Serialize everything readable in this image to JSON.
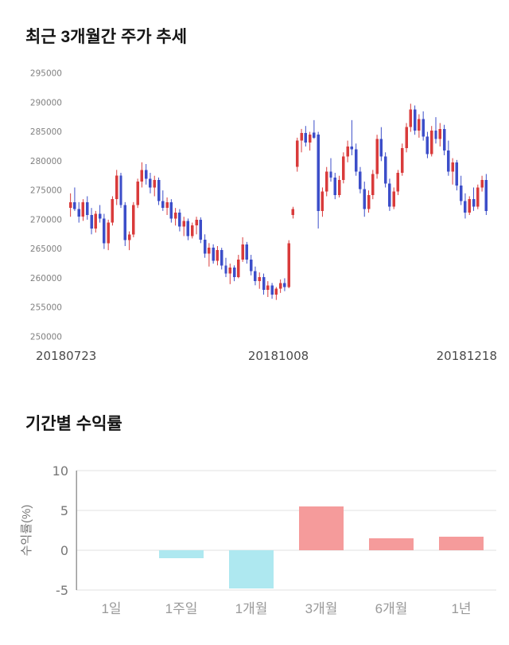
{
  "chart_data": [
    {
      "type": "candlestick",
      "title": "최근 3개월간 주가 추세",
      "ylim": [
        250000,
        295000
      ],
      "yticks": [
        250000,
        255000,
        260000,
        265000,
        270000,
        275000,
        280000,
        285000,
        290000,
        295000
      ],
      "xtick_labels": [
        "20180723",
        "20181008",
        "20181218"
      ],
      "up_color": "#d93b3b",
      "down_color": "#3c4ec9",
      "grid": false,
      "candles": [
        [
          272000,
          274500,
          270500,
          273000
        ],
        [
          273000,
          275500,
          271500,
          271800
        ],
        [
          271800,
          273000,
          269500,
          270500
        ],
        [
          270500,
          273500,
          269800,
          273000
        ],
        [
          273000,
          274000,
          270000,
          270800
        ],
        [
          270800,
          272000,
          267500,
          268500
        ],
        [
          268500,
          271500,
          267800,
          271000
        ],
        [
          271000,
          272500,
          269500,
          270200
        ],
        [
          270200,
          271000,
          265000,
          266000
        ],
        [
          266000,
          270000,
          264800,
          269500
        ],
        [
          269500,
          274000,
          269000,
          273500
        ],
        [
          273500,
          278500,
          272500,
          277500
        ],
        [
          277500,
          278000,
          272000,
          272500
        ],
        [
          272500,
          273000,
          265500,
          266500
        ],
        [
          266500,
          268000,
          264800,
          267500
        ],
        [
          267500,
          273000,
          267000,
          272500
        ],
        [
          272500,
          277000,
          272000,
          276500
        ],
        [
          276500,
          279800,
          275500,
          278500
        ],
        [
          278500,
          279500,
          276000,
          277000
        ],
        [
          277000,
          278000,
          274500,
          275500
        ],
        [
          275500,
          277500,
          274000,
          276800
        ],
        [
          276800,
          277200,
          272500,
          273200
        ],
        [
          273200,
          275000,
          271500,
          272000
        ],
        [
          272000,
          273800,
          270800,
          273000
        ],
        [
          273000,
          273500,
          269500,
          270200
        ],
        [
          270200,
          272000,
          269000,
          271200
        ],
        [
          271200,
          271800,
          268000,
          268800
        ],
        [
          268800,
          270500,
          267200,
          269800
        ],
        [
          269800,
          270200,
          266500,
          267200
        ],
        [
          267200,
          269500,
          266800,
          269000
        ],
        [
          269000,
          270500,
          267500,
          270000
        ],
        [
          270000,
          270400,
          266000,
          266600
        ],
        [
          266600,
          267500,
          263500,
          264200
        ],
        [
          264200,
          266000,
          262000,
          265200
        ],
        [
          265200,
          265800,
          262500,
          263000
        ],
        [
          263000,
          265500,
          262200,
          264800
        ],
        [
          264800,
          265200,
          261500,
          262200
        ],
        [
          262200,
          263500,
          260200,
          260800
        ],
        [
          260800,
          262500,
          259000,
          261800
        ],
        [
          261800,
          262200,
          259500,
          260200
        ],
        [
          260200,
          264000,
          260000,
          263200
        ],
        [
          263200,
          267000,
          262800,
          265800
        ],
        [
          265800,
          266200,
          262500,
          263200
        ],
        [
          263200,
          264000,
          260500,
          261200
        ],
        [
          261200,
          262000,
          258800,
          259500
        ],
        [
          259500,
          261000,
          258200,
          260200
        ],
        [
          260200,
          260800,
          257200,
          258000
        ],
        [
          258000,
          259500,
          256800,
          258800
        ],
        [
          258800,
          259200,
          256500,
          257200
        ],
        [
          257200,
          258500,
          256300,
          258200
        ],
        [
          258200,
          259800,
          257500,
          259200
        ],
        [
          259200,
          260000,
          257800,
          258500
        ],
        [
          258500,
          266500,
          258300,
          266000
        ],
        [
          270800,
          272200,
          270200,
          271800
        ],
        [
          279000,
          284000,
          278200,
          283500
        ],
        [
          283500,
          285500,
          281500,
          284800
        ],
        [
          284800,
          286000,
          282500,
          283200
        ],
        [
          283200,
          285000,
          281800,
          284500
        ],
        [
          284900,
          287000,
          283800,
          284000
        ],
        [
          284500,
          285000,
          268500,
          271500
        ],
        [
          271500,
          275500,
          270500,
          274800
        ],
        [
          274800,
          279000,
          274000,
          278200
        ],
        [
          278200,
          280500,
          276500,
          277200
        ],
        [
          277200,
          278000,
          273500,
          274200
        ],
        [
          274200,
          277500,
          273800,
          276800
        ],
        [
          276800,
          281500,
          276200,
          280800
        ],
        [
          280800,
          283500,
          279800,
          282500
        ],
        [
          282500,
          287000,
          281000,
          282000
        ],
        [
          282000,
          283000,
          277500,
          278200
        ],
        [
          278200,
          279000,
          274500,
          275200
        ],
        [
          275200,
          276500,
          270500,
          271800
        ],
        [
          271800,
          275000,
          271200,
          274200
        ],
        [
          274200,
          278500,
          273500,
          277800
        ],
        [
          277800,
          284500,
          277000,
          283800
        ],
        [
          283800,
          285800,
          280000,
          280800
        ],
        [
          280800,
          281500,
          275500,
          276200
        ],
        [
          276200,
          277000,
          271500,
          272200
        ],
        [
          272200,
          275500,
          271800,
          274800
        ],
        [
          274800,
          278500,
          274200,
          278000
        ],
        [
          278000,
          283000,
          277500,
          282200
        ],
        [
          282200,
          286500,
          281500,
          285800
        ],
        [
          285800,
          289800,
          285000,
          288800
        ],
        [
          288800,
          289500,
          284500,
          285200
        ],
        [
          285200,
          288000,
          284000,
          287200
        ],
        [
          287200,
          288500,
          283500,
          284200
        ],
        [
          284200,
          285000,
          280500,
          281200
        ],
        [
          281200,
          286000,
          280800,
          285200
        ],
        [
          285200,
          287500,
          283000,
          283800
        ],
        [
          283800,
          286500,
          282500,
          285500
        ],
        [
          285500,
          286200,
          281000,
          281800
        ],
        [
          281800,
          283500,
          277500,
          278200
        ],
        [
          278200,
          280500,
          276000,
          279800
        ],
        [
          279800,
          280200,
          275000,
          275800
        ],
        [
          275800,
          277500,
          272500,
          273200
        ],
        [
          273200,
          274500,
          270200,
          271200
        ],
        [
          271200,
          274000,
          270800,
          273500
        ],
        [
          273500,
          275500,
          271500,
          272200
        ],
        [
          272200,
          276000,
          271800,
          275500
        ],
        [
          275500,
          277500,
          274800,
          276800
        ],
        [
          276800,
          277800,
          270800,
          271500
        ]
      ]
    },
    {
      "type": "bar",
      "title": "기간별 수익률",
      "ylabel": "수익률(%)",
      "categories": [
        "1일",
        "1주일",
        "1개월",
        "3개월",
        "6개월",
        "1년"
      ],
      "values": [
        0,
        -1.0,
        -4.8,
        5.5,
        1.5,
        1.7
      ],
      "ylim": [
        -5,
        10
      ],
      "yticks": [
        -5,
        0,
        5,
        10
      ],
      "positive_color": "#f59b9b",
      "negative_color": "#aee8f0",
      "grid_color": "#e0e0e0",
      "axis_color": "#999999",
      "legend": "none"
    }
  ]
}
